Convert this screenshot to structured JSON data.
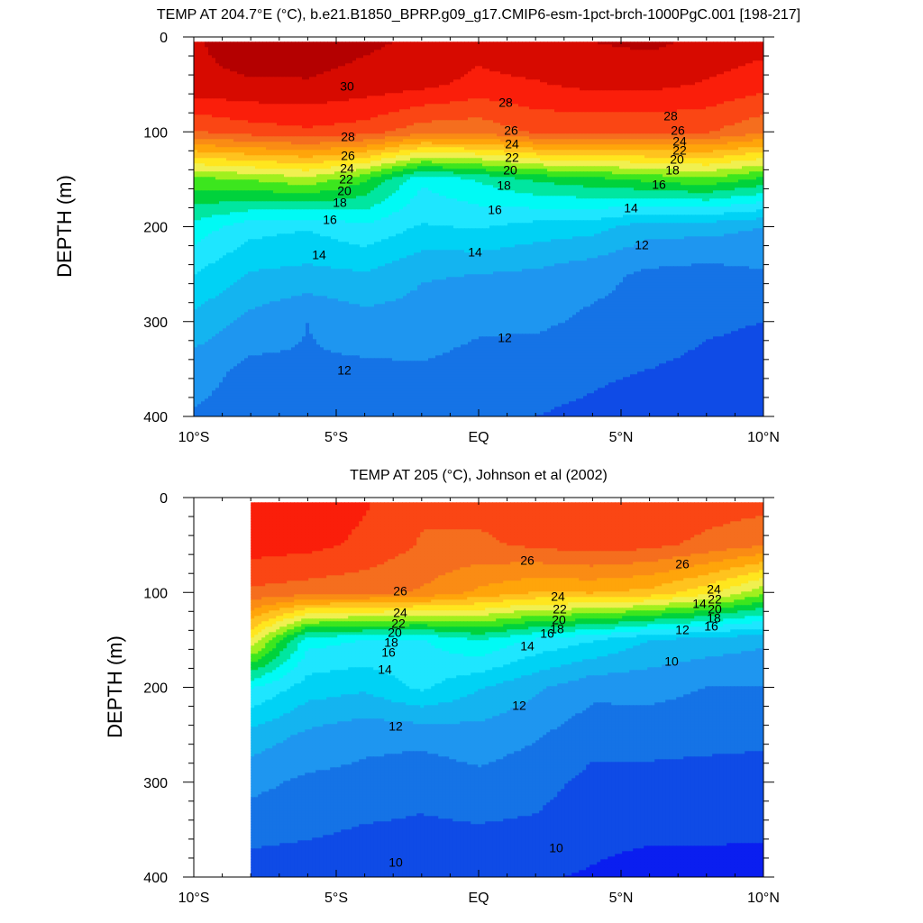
{
  "palette": [
    "#0a1ef0",
    "#0f4be6",
    "#1573e6",
    "#1e96f0",
    "#14b4f0",
    "#00d2f5",
    "#1ee6ff",
    "#00faf5",
    "#00e6a0",
    "#00d23c",
    "#3ce61e",
    "#a0f01e",
    "#f0f050",
    "#ffe61e",
    "#ffc31e",
    "#ffa50a",
    "#fa8c14",
    "#f56e1e",
    "#fa4614",
    "#fa1e0a",
    "#d70a00",
    "#b40000"
  ],
  "chart_data": [
    {
      "type": "contour",
      "title": "TEMP AT 204.7°E (°C), b.e21.B1850_BPRP.g09_g17.CMIP6-esm-1pct-brch-1000PgC.001 [198-217]",
      "ylabel": "DEPTH (m)",
      "xlabel": "",
      "xlim": [
        -10,
        10
      ],
      "ylim": [
        400,
        0
      ],
      "x_ticks": [
        -10,
        -5,
        0,
        5,
        10
      ],
      "x_ticklabels": [
        "10°S",
        "5°S",
        "EQ",
        "5°N",
        "10°N"
      ],
      "y_ticks": [
        0,
        100,
        200,
        300,
        400
      ],
      "y_ticklabels": [
        "0",
        "100",
        "200",
        "300",
        "400"
      ],
      "contour_interval": 1,
      "data_xrange": [
        -10,
        10
      ],
      "data_depth_top": 5,
      "lat": [
        -10,
        -8,
        -6,
        -4,
        -2,
        0,
        2,
        4,
        6,
        8,
        10
      ],
      "depth": [
        5,
        50,
        100,
        150,
        200,
        250,
        300,
        350,
        400
      ],
      "temperature": [
        [
          29.9,
          30.5,
          30.6,
          30.2,
          29.8,
          29.4,
          29.9,
          30.0,
          30.2,
          29.8,
          29.4
        ],
        [
          29.8,
          29.9,
          29.9,
          29.6,
          29.3,
          28.7,
          28.9,
          29.3,
          29.3,
          28.9,
          28.4
        ],
        [
          26.9,
          27.5,
          27.8,
          27.5,
          26.4,
          26.3,
          27.2,
          27.1,
          27.1,
          27.1,
          26.2
        ],
        [
          19.7,
          20.1,
          20.7,
          19.2,
          16.2,
          17.1,
          18.2,
          18.7,
          19.3,
          19.8,
          18.7
        ],
        [
          16.6,
          15.4,
          15.1,
          15.8,
          14.9,
          15.1,
          14.6,
          14.4,
          13.4,
          13.4,
          13.0
        ],
        [
          15.0,
          13.9,
          13.7,
          13.9,
          13.1,
          13.0,
          12.8,
          12.3,
          11.8,
          11.6,
          11.9
        ],
        [
          13.7,
          12.7,
          12.0,
          12.6,
          12.6,
          12.2,
          12.2,
          11.8,
          11.7,
          11.2,
          11.0
        ],
        [
          12.5,
          11.7,
          11.9,
          11.8,
          11.9,
          11.6,
          11.4,
          11.2,
          11.0,
          10.7,
          10.5
        ],
        [
          11.9,
          11.5,
          11.5,
          11.6,
          11.5,
          11.2,
          11.0,
          10.8,
          10.4,
          10.3,
          10.2
        ]
      ],
      "line_labels": [
        "30",
        "28",
        "26",
        "24",
        "22",
        "20",
        "18",
        "16",
        "14",
        "12",
        "28",
        "26",
        "24",
        "22",
        "20",
        "18",
        "16",
        "14",
        "12",
        "28",
        "26",
        "24",
        "22",
        "20",
        "18",
        "16",
        "14",
        "12"
      ]
    },
    {
      "type": "contour",
      "title": "TEMP AT 205 (°C), Johnson et al (2002)",
      "ylabel": "DEPTH (m)",
      "xlabel": "",
      "xlim": [
        -10,
        10
      ],
      "ylim": [
        400,
        0
      ],
      "x_ticks": [
        -10,
        -5,
        0,
        5,
        10
      ],
      "x_ticklabels": [
        "10°S",
        "5°S",
        "EQ",
        "5°N",
        "10°N"
      ],
      "y_ticks": [
        0,
        100,
        200,
        300,
        400
      ],
      "y_ticklabels": [
        "0",
        "100",
        "200",
        "300",
        "400"
      ],
      "contour_interval": 1,
      "data_xrange": [
        -8,
        10
      ],
      "data_depth_top": 5,
      "lat": [
        -8,
        -6,
        -4,
        -2,
        0,
        2,
        4,
        6,
        8,
        10
      ],
      "depth": [
        5,
        50,
        100,
        150,
        200,
        250,
        300,
        350,
        400
      ],
      "temperature": [
        [
          28.8,
          28.6,
          28.1,
          27.2,
          27.3,
          27.8,
          28.0,
          27.9,
          27.6,
          27.4
        ],
        [
          28.5,
          28.3,
          27.8,
          26.9,
          26.8,
          27.2,
          27.5,
          27.3,
          26.7,
          26.1
        ],
        [
          26.8,
          26.5,
          26.3,
          25.9,
          24.8,
          24.0,
          24.1,
          23.7,
          22.4,
          20.3
        ],
        [
          22.0,
          16.4,
          16.0,
          15.9,
          17.1,
          15.8,
          15.1,
          14.0,
          13.6,
          13.2
        ],
        [
          16.1,
          14.5,
          14.2,
          15.2,
          14.1,
          13.2,
          12.3,
          12.3,
          12.0,
          12.0
        ],
        [
          13.6,
          12.8,
          12.3,
          12.3,
          12.6,
          12.1,
          11.4,
          11.5,
          11.4,
          11.3
        ],
        [
          12.3,
          11.8,
          11.7,
          11.4,
          11.7,
          11.4,
          10.7,
          10.6,
          10.5,
          10.4
        ],
        [
          11.4,
          11.2,
          10.9,
          10.8,
          10.9,
          10.8,
          10.3,
          10.2,
          10.2,
          10.1
        ],
        [
          10.4,
          10.3,
          10.2,
          10.1,
          10.2,
          10.1,
          9.9,
          9.6,
          9.6,
          9.7
        ]
      ],
      "line_labels": [
        "26",
        "24",
        "22",
        "20",
        "18",
        "16",
        "14",
        "12",
        "10",
        "26",
        "24",
        "22",
        "20",
        "18",
        "16",
        "14",
        "12",
        "10",
        "26",
        "24",
        "22",
        "20",
        "18",
        "16",
        "14",
        "12",
        "10"
      ]
    }
  ]
}
